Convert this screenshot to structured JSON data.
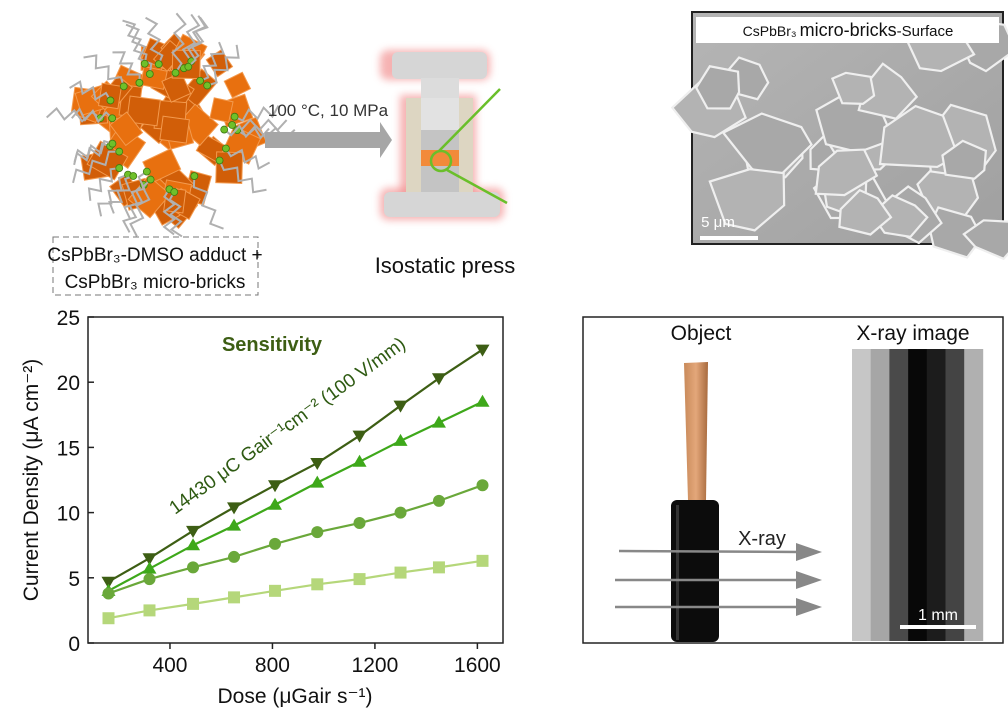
{
  "schematic": {
    "precursor_label_line1": "CsPbBr₃-DMSO adduct +",
    "precursor_label_line2": "CsPbBr₃ micro-bricks",
    "condition_label": "100 °C, 10 MPa",
    "press_label": "Isostatic press",
    "colors": {
      "brick": "#e8700f",
      "ligand": "#b0b0b0",
      "ligand_head": "#6fc02a",
      "press_glow": "#f08080",
      "magnifier": "#6abf2a"
    }
  },
  "sem": {
    "title_prefix": "CsPbBr₃",
    "title_main": "micro-bricks",
    "title_suffix": "-Surface",
    "scale_label": "5 μm"
  },
  "imaging": {
    "object_label": "Object",
    "xray_image_label": "X-ray image",
    "beam_label": "X-ray",
    "scale_label": "1 mm"
  },
  "chart_data": {
    "type": "line",
    "title": "Sensitivity",
    "annotation": "14430 μC  Gair⁻¹cm⁻² (100 V/mm)",
    "xlabel": "Dose  (μGair s⁻¹)",
    "ylabel": "Current Density  (μA cm⁻²)",
    "xlim": [
      80,
      1700
    ],
    "ylim": [
      0,
      25
    ],
    "xticks": [
      400,
      800,
      1200,
      1600
    ],
    "yticks": [
      0,
      5,
      10,
      15,
      20,
      25
    ],
    "grid": false,
    "x": [
      160,
      320,
      490,
      650,
      810,
      975,
      1140,
      1300,
      1450,
      1620
    ],
    "series": [
      {
        "marker": "triangle-down",
        "color": "#3d5e14",
        "values": [
          4.7,
          6.5,
          8.6,
          10.4,
          12.1,
          13.8,
          15.9,
          18.2,
          20.3,
          22.5
        ]
      },
      {
        "marker": "triangle-up",
        "color": "#3ea81a",
        "values": [
          4.0,
          5.7,
          7.5,
          9.0,
          10.6,
          12.3,
          13.9,
          15.5,
          16.9,
          18.5
        ]
      },
      {
        "marker": "circle",
        "color": "#6aa83a",
        "values": [
          3.8,
          4.9,
          5.8,
          6.6,
          7.6,
          8.5,
          9.2,
          10.0,
          10.9,
          12.1
        ]
      },
      {
        "marker": "square",
        "color": "#b5d77a",
        "values": [
          1.9,
          2.5,
          3.0,
          3.5,
          4.0,
          4.5,
          4.9,
          5.4,
          5.8,
          6.3
        ]
      }
    ],
    "title_color": "#3d5e14"
  }
}
